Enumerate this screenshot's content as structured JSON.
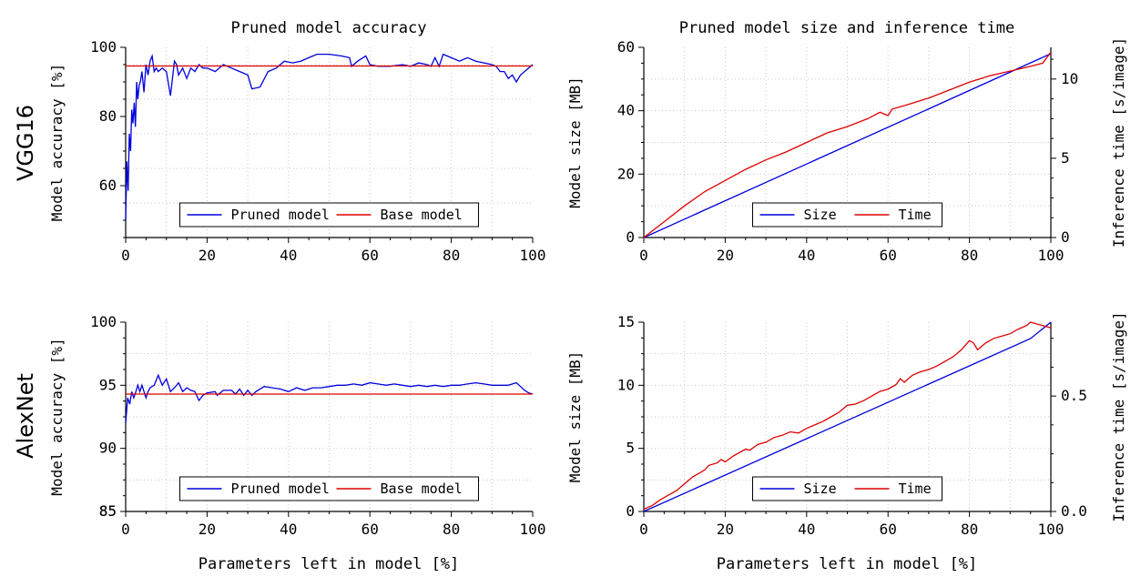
{
  "figure": {
    "row_labels": [
      "VGG16",
      "AlexNet"
    ],
    "column_titles": [
      "Pruned model accuracy",
      "Pruned model size and inference time"
    ],
    "shared_xlabel": "Parameters left in model [%]"
  },
  "chart_data": [
    {
      "type": "line",
      "row": "VGG16",
      "title": "Pruned model accuracy",
      "xlabel": "",
      "ylabel": "Model accuracy [%]",
      "xlim": [
        0,
        100
      ],
      "ylim": [
        45,
        100
      ],
      "xticks": [
        0,
        20,
        40,
        60,
        80,
        100
      ],
      "yticks": [
        60,
        80,
        100
      ],
      "grid": true,
      "legend": "bottom-center",
      "series": [
        {
          "name": "Pruned model",
          "color": "#0000dd",
          "x": [
            0,
            0.3,
            0.6,
            0.9,
            1.2,
            1.5,
            1.8,
            2.1,
            2.4,
            2.7,
            3.0,
            3.3,
            3.6,
            4.0,
            4.5,
            5.0,
            5.5,
            6.0,
            6.5,
            7.0,
            7.5,
            8.0,
            9.0,
            10.0,
            11.0,
            12.0,
            12.5,
            13.0,
            14.0,
            15.0,
            16.0,
            17.0,
            18.0,
            19.0,
            20.0,
            22.0,
            24.0,
            26.0,
            28.0,
            30.0,
            31.0,
            33.0,
            35.0,
            37.0,
            39.0,
            41.0,
            43.0,
            45.0,
            47.0,
            50.0,
            53.0,
            55.0,
            55.5,
            57.0,
            59.0,
            60.0,
            62.0,
            65.0,
            68.0,
            70.0,
            72.0,
            74.0,
            75.0,
            76.0,
            77.0,
            78.0,
            79.0,
            80.0,
            82.0,
            84.0,
            86.0,
            88.0,
            90.0,
            91.0,
            92.0,
            93.0,
            94.0,
            95.0,
            96.0,
            97.0,
            98.0,
            99.0,
            100.0
          ],
          "y": [
            50,
            67,
            58.5,
            75,
            70,
            82,
            78,
            84,
            77,
            90,
            85,
            89,
            90,
            93,
            87,
            95,
            92,
            96,
            97.5,
            93,
            94,
            93,
            94,
            93,
            86,
            96,
            95,
            92,
            94,
            91,
            94,
            93,
            95,
            94,
            94,
            93,
            95,
            94,
            93,
            92,
            88,
            88.5,
            93,
            94,
            96,
            95.5,
            96,
            97,
            98,
            98,
            97.5,
            97,
            94.5,
            96,
            97.5,
            95,
            94.5,
            94.5,
            95,
            94.5,
            95.5,
            95,
            94.5,
            97,
            94.5,
            98,
            97.5,
            97,
            96,
            97,
            96,
            95.5,
            95,
            94.5,
            93,
            93,
            91,
            92,
            90,
            92,
            93,
            94,
            95
          ]
        },
        {
          "name": "Base model",
          "color": "#dd0000",
          "x": [
            0,
            100
          ],
          "y": [
            94.6,
            94.6
          ]
        }
      ]
    },
    {
      "type": "line",
      "row": "VGG16",
      "title": "Pruned model size and inference time",
      "xlabel": "",
      "ylabel": "Model size [MB]",
      "y2label": "Inference time [s/image]",
      "xlim": [
        0,
        100
      ],
      "ylim": [
        0,
        60
      ],
      "y2lim": [
        0,
        12
      ],
      "xticks": [
        0,
        20,
        40,
        60,
        80,
        100
      ],
      "yticks": [
        0,
        20,
        40,
        60
      ],
      "y2ticks": [
        0,
        5,
        10
      ],
      "grid": true,
      "legend": "bottom-center",
      "series": [
        {
          "name": "Size",
          "color": "#0000dd",
          "axis": "left",
          "x": [
            0,
            100
          ],
          "y": [
            0,
            58
          ]
        },
        {
          "name": "Time",
          "color": "#dd0000",
          "axis": "right",
          "x": [
            0,
            5,
            10,
            15,
            20,
            25,
            30,
            35,
            40,
            45,
            50,
            55,
            58,
            60,
            61,
            65,
            70,
            75,
            80,
            85,
            90,
            95,
            98,
            100
          ],
          "y": [
            0,
            1.0,
            2.0,
            2.9,
            3.6,
            4.3,
            4.9,
            5.4,
            6.0,
            6.6,
            7.0,
            7.5,
            7.9,
            7.7,
            8.1,
            8.4,
            8.8,
            9.3,
            9.8,
            10.2,
            10.5,
            10.8,
            11.0,
            11.7
          ]
        }
      ]
    },
    {
      "type": "line",
      "row": "AlexNet",
      "title": "",
      "xlabel": "Parameters left in model [%]",
      "ylabel": "Model accuracy [%]",
      "xlim": [
        0,
        100
      ],
      "ylim": [
        85,
        100
      ],
      "xticks": [
        0,
        20,
        40,
        60,
        80,
        100
      ],
      "yticks": [
        85,
        90,
        95,
        100
      ],
      "grid": true,
      "legend": "bottom-center",
      "series": [
        {
          "name": "Pruned model",
          "color": "#0000dd",
          "x": [
            0,
            0.5,
            1.0,
            1.5,
            2.0,
            2.5,
            3.0,
            3.5,
            4.0,
            5.0,
            5.5,
            6.0,
            7.0,
            8.0,
            9.0,
            10.0,
            11.0,
            12.0,
            13.0,
            14.0,
            15.0,
            16.0,
            17.0,
            18.0,
            19.0,
            20.0,
            22.0,
            22.5,
            24.0,
            26.0,
            27.0,
            28.0,
            29.0,
            30.0,
            31.0,
            32.0,
            34.0,
            36.0,
            38.0,
            40.0,
            42.0,
            44.0,
            46.0,
            48.0,
            50.0,
            52.0,
            54.0,
            56.0,
            58.0,
            60.0,
            62.0,
            64.0,
            66.0,
            68.0,
            70.0,
            72.0,
            74.0,
            76.0,
            78.0,
            80.0,
            82.0,
            84.0,
            86.0,
            88.0,
            90.0,
            92.0,
            94.0,
            95.0,
            96.0,
            97.0,
            98.0,
            99.0,
            100.0
          ],
          "y": [
            92,
            94,
            93.5,
            94.5,
            94,
            94.5,
            95,
            94.5,
            95,
            94,
            94.5,
            94.8,
            95,
            95.8,
            95,
            95.5,
            94.5,
            94.8,
            95.2,
            94.5,
            94.8,
            94.6,
            94.5,
            93.8,
            94.2,
            94.4,
            94.5,
            94.2,
            94.6,
            94.6,
            94.3,
            94.7,
            94.2,
            94.6,
            94.2,
            94.5,
            94.9,
            94.8,
            94.7,
            94.5,
            94.8,
            94.6,
            94.8,
            94.8,
            94.9,
            95.0,
            95.0,
            95.1,
            95.0,
            95.2,
            95.1,
            95.0,
            95.1,
            95.0,
            94.9,
            95.0,
            94.9,
            95.0,
            94.9,
            95.0,
            95.0,
            95.1,
            95.2,
            95.1,
            95.0,
            95.0,
            95.0,
            95.1,
            95.2,
            94.9,
            94.6,
            94.4,
            94.3
          ]
        },
        {
          "name": "Base model",
          "color": "#dd0000",
          "x": [
            0,
            100
          ],
          "y": [
            94.3,
            94.3
          ]
        }
      ]
    },
    {
      "type": "line",
      "row": "AlexNet",
      "title": "",
      "xlabel": "Parameters left in model [%]",
      "ylabel": "Model size [MB]",
      "y2label": "Inference time [s/image]",
      "xlim": [
        0,
        100
      ],
      "ylim": [
        0,
        15
      ],
      "y2lim": [
        0,
        0.82
      ],
      "xticks": [
        0,
        20,
        40,
        60,
        80,
        100
      ],
      "yticks": [
        0,
        5,
        10,
        15
      ],
      "y2ticks": [
        0.0,
        0.5
      ],
      "y2ticklabels": [
        "0.0",
        "0.5"
      ],
      "grid": true,
      "legend": "bottom-center",
      "series": [
        {
          "name": "Size",
          "color": "#0000dd",
          "axis": "left",
          "x": [
            0,
            95,
            100
          ],
          "y": [
            0,
            13.7,
            15.0
          ]
        },
        {
          "name": "Time",
          "color": "#dd0000",
          "axis": "right",
          "x": [
            0,
            2,
            4,
            6,
            8,
            10,
            12,
            14,
            15,
            16,
            18,
            19,
            20,
            22,
            25,
            26,
            28,
            30,
            32,
            34,
            36,
            38,
            40,
            42,
            44,
            46,
            48,
            50,
            52,
            54,
            56,
            58,
            60,
            62,
            63,
            64,
            66,
            68,
            70,
            72,
            74,
            76,
            78,
            80,
            81,
            82,
            84,
            86,
            88,
            90,
            92,
            94,
            95,
            96,
            98,
            100
          ],
          "y": [
            0.01,
            0.025,
            0.05,
            0.07,
            0.09,
            0.12,
            0.15,
            0.17,
            0.18,
            0.2,
            0.21,
            0.225,
            0.215,
            0.24,
            0.27,
            0.265,
            0.29,
            0.3,
            0.32,
            0.33,
            0.345,
            0.34,
            0.36,
            0.375,
            0.39,
            0.41,
            0.43,
            0.46,
            0.465,
            0.48,
            0.5,
            0.52,
            0.53,
            0.55,
            0.575,
            0.56,
            0.59,
            0.605,
            0.615,
            0.63,
            0.65,
            0.67,
            0.7,
            0.74,
            0.73,
            0.7,
            0.73,
            0.75,
            0.76,
            0.77,
            0.79,
            0.805,
            0.82,
            0.815,
            0.805,
            0.795
          ]
        }
      ]
    }
  ]
}
